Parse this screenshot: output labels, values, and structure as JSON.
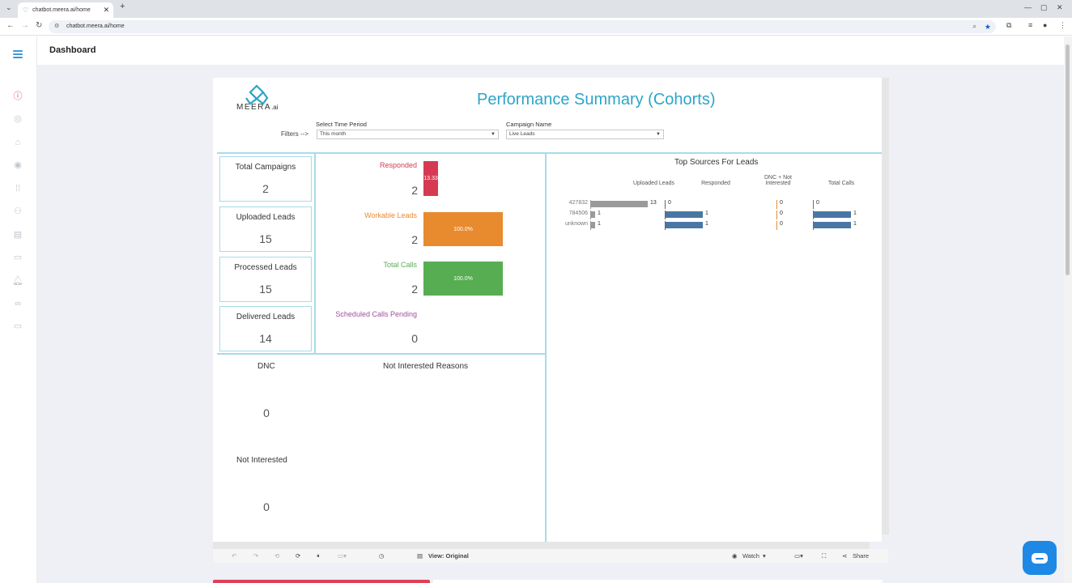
{
  "browser": {
    "tab_title": "chatbot.meera.ai/home",
    "url": "chatbot.meera.ai/home"
  },
  "topbar": {
    "title": "Dashboard"
  },
  "sidebar": {
    "icons": [
      "alert-icon",
      "user-circle-icon",
      "home-icon",
      "person-icon",
      "grid-icon",
      "users-icon",
      "document-icon",
      "card-icon",
      "bell-icon",
      "link-icon",
      "chat-icon"
    ],
    "active_color": "#e0405a"
  },
  "dashboard": {
    "logo": {
      "text": "MEERA",
      "suffix": ".ai"
    },
    "title": "Performance Summary (Cohorts)",
    "filters_label": "Filters -->",
    "time_period": {
      "label": "Select Time Period",
      "value": "This month"
    },
    "campaign": {
      "label": "Campaign Name",
      "value": "Live Leads"
    },
    "kpis": [
      {
        "label": "Total Campaigns",
        "value": "2"
      },
      {
        "label": "Uploaded Leads",
        "value": "15"
      },
      {
        "label": "Processed Leads",
        "value": "15"
      },
      {
        "label": "Delivered Leads",
        "value": "14"
      }
    ],
    "metrics": [
      {
        "label": "Responded",
        "value": "2",
        "bar_text": "13.33",
        "color": "#d63a53",
        "fill": 0.1333
      },
      {
        "label": "Workable Leads",
        "value": "2",
        "bar_text": "100.0%",
        "color": "#e88a2e",
        "fill": 1.0
      },
      {
        "label": "Total Calls",
        "value": "2",
        "bar_text": "100.0%",
        "color": "#56ad52",
        "fill": 1.0
      },
      {
        "label": "Scheduled Calls Pending",
        "value": "0",
        "color": "#a0519a"
      }
    ],
    "dnc": {
      "label": "DNC",
      "value": "0"
    },
    "not_interested": {
      "label": "Not Interested",
      "value": "0"
    },
    "reasons_title": "Not Interested Reasons",
    "sources": {
      "title": "Top Sources For Leads",
      "columns": [
        "Uploaded Leads",
        "Responded",
        "DNC + Not Interested",
        "Total Calls"
      ],
      "rows": [
        {
          "source": "427832",
          "uploaded": 13,
          "responded": 0,
          "dnc": 0,
          "calls": 0
        },
        {
          "source": "784506",
          "uploaded": 1,
          "responded": 1,
          "dnc": 0,
          "calls": 1
        },
        {
          "source": "unknown",
          "uploaded": 1,
          "responded": 1,
          "dnc": 0,
          "calls": 1
        }
      ]
    },
    "toolbar": {
      "view_label": "View: Original",
      "watch_label": "Watch",
      "share_label": "Share"
    }
  }
}
